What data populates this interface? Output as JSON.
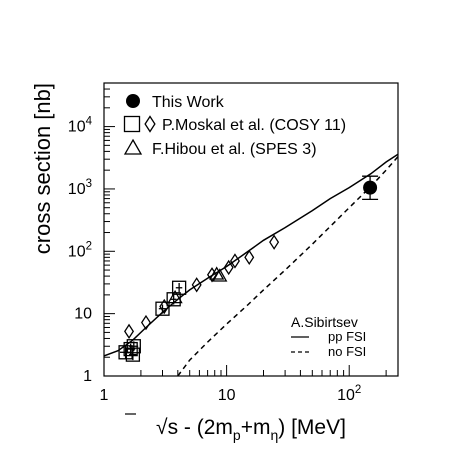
{
  "chart_data": {
    "type": "scatter",
    "xlabel": {
      "sqrt": "√",
      "s": "s - (2m",
      "p": "p",
      "plus": "+m",
      "eta": "η",
      "close": ")",
      "units": "[MeV]"
    },
    "ylabel": "cross section [nb]",
    "xscale": "log",
    "yscale": "log",
    "xlim": [
      1,
      250
    ],
    "ylim": [
      1,
      50000
    ],
    "x_ticks": [
      {
        "value": 1,
        "label": "1"
      },
      {
        "value": 10,
        "label": "10"
      },
      {
        "value": 100,
        "label": "10",
        "exp": "2"
      }
    ],
    "y_ticks": [
      {
        "value": 1,
        "label": "1"
      },
      {
        "value": 10,
        "label": "10"
      },
      {
        "value": 100,
        "label": "10",
        "exp": "2"
      },
      {
        "value": 1000,
        "label": "10",
        "exp": "3"
      },
      {
        "value": 10000,
        "label": "10",
        "exp": "4"
      }
    ],
    "grid": false,
    "legend": {
      "position": "top-left",
      "entries": [
        {
          "marker": "circle",
          "label": "This Work"
        },
        {
          "marker": "square+diamond",
          "label": "P.Moskal et al. (COSY 11)"
        },
        {
          "marker": "triangle",
          "label": "F.Hibou et al. (SPES 3)"
        }
      ]
    },
    "theory_legend": {
      "position": "bottom-right",
      "author": "A.Sibirtsev",
      "entries": [
        {
          "style": "solid",
          "label": "pp FSI"
        },
        {
          "style": "dashed",
          "label": "no FSI"
        }
      ]
    },
    "series": [
      {
        "name": "This Work",
        "marker": "circle",
        "points": [
          {
            "x": 148,
            "y": 1050,
            "y_low": 680,
            "y_high": 1600,
            "x_err": 12
          }
        ]
      },
      {
        "name": "P.Moskal et al. (COSY 11)",
        "marker": "square",
        "points": [
          {
            "x": 1.5,
            "y": 2.4,
            "x_err": 0.15,
            "y_low": 1.9,
            "y_high": 3.0
          },
          {
            "x": 1.65,
            "y": 2.7,
            "x_err": 0.15,
            "y_low": 2.2,
            "y_high": 3.3
          },
          {
            "x": 1.75,
            "y": 3.0,
            "x_err": 0.15,
            "y_low": 2.5,
            "y_high": 3.6
          },
          {
            "x": 1.72,
            "y": 2.2,
            "x_err": 0.12,
            "y_low": 1.8,
            "y_high": 2.7
          },
          {
            "x": 3.0,
            "y": 12,
            "x_err": 0.2,
            "y_low": 10,
            "y_high": 14
          },
          {
            "x": 4.1,
            "y": 26,
            "x_err": 0.25,
            "y_low": 22,
            "y_high": 31
          },
          {
            "x": 3.7,
            "y": 17,
            "x_err": 0.2,
            "y_low": 14,
            "y_high": 20
          }
        ]
      },
      {
        "name": "P.Moskal et al. (COSY 11)",
        "marker": "diamond",
        "points": [
          {
            "x": 1.6,
            "y": 5.2
          },
          {
            "x": 2.2,
            "y": 7.2
          },
          {
            "x": 3.1,
            "y": 13
          },
          {
            "x": 5.7,
            "y": 29
          },
          {
            "x": 7.6,
            "y": 42
          },
          {
            "x": 10.4,
            "y": 55
          },
          {
            "x": 11.7,
            "y": 70
          },
          {
            "x": 15.3,
            "y": 80
          },
          {
            "x": 24.4,
            "y": 140
          }
        ]
      },
      {
        "name": "F.Hibou et al. (SPES 3)",
        "marker": "triangle",
        "points": [
          {
            "x": 3.8,
            "y": 18
          },
          {
            "x": 8.3,
            "y": 43
          },
          {
            "x": 8.8,
            "y": 40
          }
        ]
      }
    ],
    "curves": [
      {
        "name": "pp FSI",
        "style": "solid",
        "points": [
          [
            1,
            2.1
          ],
          [
            1.3,
            2.55
          ],
          [
            1.7,
            3.7
          ],
          [
            2.2,
            6
          ],
          [
            3,
            10.5
          ],
          [
            4,
            17
          ],
          [
            5,
            24
          ],
          [
            7,
            37
          ],
          [
            10,
            57
          ],
          [
            15,
            100
          ],
          [
            20,
            150
          ],
          [
            30,
            240
          ],
          [
            50,
            450
          ],
          [
            70,
            700
          ],
          [
            100,
            1050
          ],
          [
            150,
            1750
          ],
          [
            200,
            2700
          ],
          [
            250,
            3600
          ]
        ]
      },
      {
        "name": "no FSI",
        "style": "dashed",
        "points": [
          [
            4,
            1.0
          ],
          [
            5,
            1.8
          ],
          [
            7,
            3.5
          ],
          [
            10,
            6.8
          ],
          [
            15,
            14
          ],
          [
            20,
            24
          ],
          [
            30,
            50
          ],
          [
            50,
            130
          ],
          [
            70,
            250
          ],
          [
            100,
            500
          ],
          [
            150,
            1100
          ],
          [
            200,
            2000
          ],
          [
            250,
            3300
          ]
        ]
      }
    ]
  }
}
